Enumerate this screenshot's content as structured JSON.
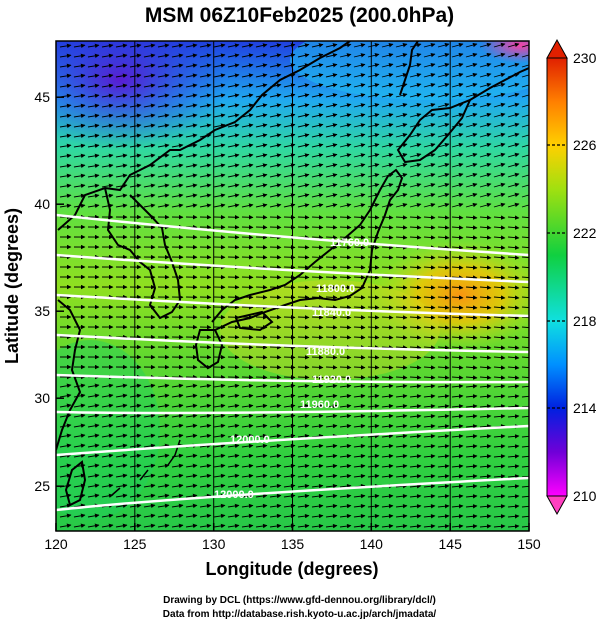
{
  "title": "MSM 06Z10Feb2025 (200.0hPa)",
  "x_axis": {
    "label": "Longitude (degrees)",
    "range": [
      120,
      150
    ],
    "ticks": [
      "120",
      "125",
      "130",
      "135",
      "140",
      "145",
      "150"
    ]
  },
  "y_axis": {
    "label": "Latitude  (degrees)",
    "range": [
      22.4,
      47.6
    ],
    "ticks": [
      "25",
      "30",
      "35",
      "40",
      "45"
    ]
  },
  "colorbar": {
    "range": [
      210,
      230
    ],
    "ticks": [
      "230",
      "226",
      "222",
      "218",
      "214",
      "210"
    ],
    "colors": [
      "#ff00ff",
      "#7000d8",
      "#0020e0",
      "#0090ff",
      "#10e0e0",
      "#10d040",
      "#a0e010",
      "#ffd000",
      "#ff8000",
      "#e02000"
    ]
  },
  "contours": {
    "color": "#ffffff",
    "labels": [
      "11760.0",
      "11800.0",
      "11840.0",
      "11880.0",
      "11920.0",
      "11960.0",
      "12000.0"
    ]
  },
  "credits": {
    "line1": "Drawing by DCL (https://www.gfd-dennou.org/library/dcl/)",
    "line2": "Data from http://database.rish.kyoto-u.ac.jp/arch/jmadata/"
  }
}
